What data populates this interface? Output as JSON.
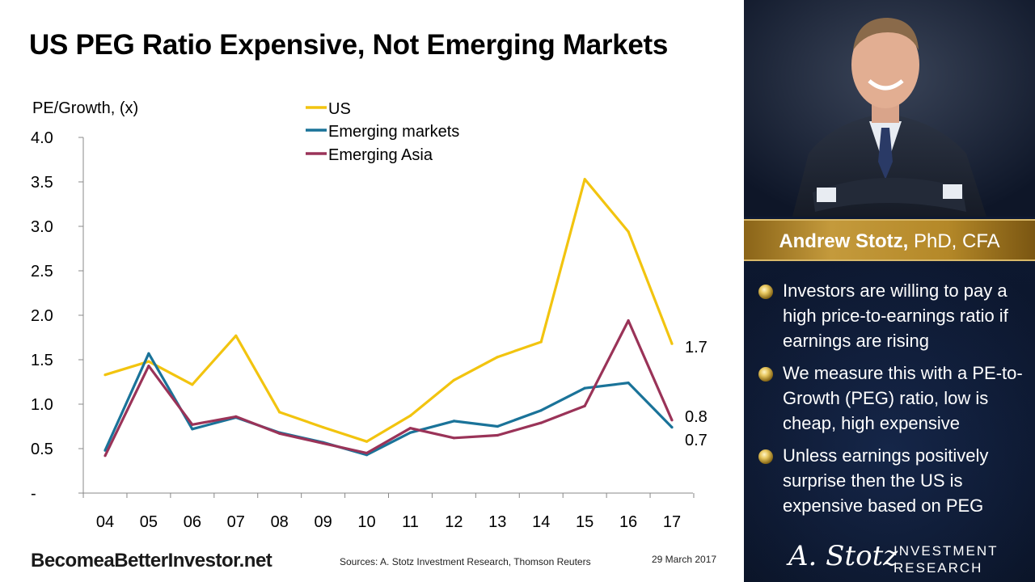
{
  "title": "US PEG Ratio Expensive, Not Emerging Markets",
  "footer": {
    "site": "BecomeaBetterInvestor.net",
    "sources": "Sources: A. Stotz Investment Research, Thomson Reuters",
    "date": "29 March 2017"
  },
  "sidebar": {
    "name_bold": "Andrew Stotz,",
    "name_rest": " PhD, CFA",
    "bullets": [
      "Investors are willing to pay a high price-to-earnings ratio if earnings are rising",
      "We measure this with a PE-to-Growth (PEG) ratio, low is cheap, high expensive",
      "Unless earnings positively surprise then the US is expensive based on PEG"
    ],
    "logo_signature": "A. Stotz",
    "logo_line1": "INVESTMENT",
    "logo_line2": "RESEARCH"
  },
  "colors": {
    "us": "#F2C40F",
    "emerging_markets": "#1A7399",
    "emerging_asia": "#9A3358",
    "panel_bg": "#0d1830",
    "gold": "#c49a3c"
  },
  "chart_data": {
    "type": "line",
    "ylabel": "PE/Growth, (x)",
    "xlabel": "",
    "categories": [
      "04",
      "05",
      "06",
      "07",
      "08",
      "09",
      "10",
      "11",
      "12",
      "13",
      "14",
      "15",
      "16",
      "17"
    ],
    "ylim": [
      0,
      4.0
    ],
    "yticks": [
      "-",
      "0.5",
      "1.0",
      "1.5",
      "2.0",
      "2.5",
      "3.0",
      "3.5",
      "4.0"
    ],
    "grid": false,
    "legend": "top-center",
    "series": [
      {
        "name": "US",
        "color": "#F2C40F",
        "values": [
          1.33,
          1.48,
          1.22,
          1.77,
          0.91,
          0.74,
          0.58,
          0.87,
          1.27,
          1.53,
          1.7,
          3.53,
          2.94,
          1.68
        ],
        "end_label": "1.7"
      },
      {
        "name": "Emerging markets",
        "color": "#1A7399",
        "values": [
          0.48,
          1.57,
          0.72,
          0.85,
          0.68,
          0.57,
          0.43,
          0.68,
          0.81,
          0.75,
          0.93,
          1.18,
          1.24,
          0.74
        ],
        "end_label": "0.7"
      },
      {
        "name": "Emerging Asia",
        "color": "#9A3358",
        "values": [
          0.42,
          1.43,
          0.77,
          0.86,
          0.67,
          0.56,
          0.45,
          0.73,
          0.62,
          0.65,
          0.79,
          0.98,
          1.94,
          0.82
        ],
        "end_label": "0.8"
      }
    ]
  }
}
